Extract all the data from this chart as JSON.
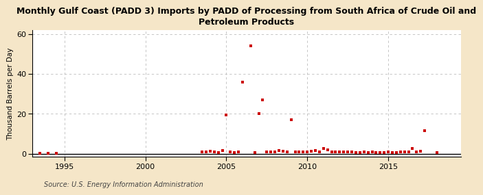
{
  "title": "Monthly Gulf Coast (PADD 3) Imports by PADD of Processing from South Africa of Crude Oil and\nPetroleum Products",
  "ylabel": "Thousand Barrels per Day",
  "source": "Source: U.S. Energy Information Administration",
  "background_color": "#f5e6c8",
  "plot_bg_color": "#ffffff",
  "marker_color": "#cc0000",
  "xlim": [
    1993.0,
    2019.5
  ],
  "ylim": [
    -1.5,
    62
  ],
  "yticks": [
    0,
    20,
    40,
    60
  ],
  "xticks": [
    1995,
    2000,
    2005,
    2010,
    2015
  ],
  "data_points": [
    [
      1993.5,
      0.3
    ],
    [
      1994.0,
      0.3
    ],
    [
      1994.5,
      0.3
    ],
    [
      2003.5,
      1.0
    ],
    [
      2003.75,
      0.8
    ],
    [
      2004.0,
      1.2
    ],
    [
      2004.25,
      0.8
    ],
    [
      2004.5,
      0.5
    ],
    [
      2004.75,
      1.5
    ],
    [
      2005.0,
      19.5
    ],
    [
      2005.25,
      0.8
    ],
    [
      2005.5,
      0.5
    ],
    [
      2005.75,
      1.0
    ],
    [
      2006.0,
      36.0
    ],
    [
      2006.5,
      54.0
    ],
    [
      2006.75,
      0.5
    ],
    [
      2007.0,
      20.0
    ],
    [
      2007.25,
      27.0
    ],
    [
      2007.5,
      0.8
    ],
    [
      2007.75,
      1.0
    ],
    [
      2008.0,
      0.8
    ],
    [
      2008.25,
      1.5
    ],
    [
      2008.5,
      1.2
    ],
    [
      2008.75,
      0.8
    ],
    [
      2009.0,
      17.0
    ],
    [
      2009.25,
      0.8
    ],
    [
      2009.5,
      0.8
    ],
    [
      2009.75,
      1.0
    ],
    [
      2010.0,
      0.8
    ],
    [
      2010.25,
      1.2
    ],
    [
      2010.5,
      1.5
    ],
    [
      2010.75,
      0.8
    ],
    [
      2011.0,
      2.5
    ],
    [
      2011.25,
      2.0
    ],
    [
      2011.5,
      0.8
    ],
    [
      2011.75,
      1.0
    ],
    [
      2012.0,
      0.8
    ],
    [
      2012.25,
      0.8
    ],
    [
      2012.5,
      0.8
    ],
    [
      2012.75,
      0.8
    ],
    [
      2013.0,
      0.5
    ],
    [
      2013.25,
      0.5
    ],
    [
      2013.5,
      0.8
    ],
    [
      2013.75,
      0.5
    ],
    [
      2014.0,
      0.8
    ],
    [
      2014.25,
      0.5
    ],
    [
      2014.5,
      0.5
    ],
    [
      2014.75,
      0.5
    ],
    [
      2015.0,
      0.8
    ],
    [
      2015.25,
      0.5
    ],
    [
      2015.5,
      0.5
    ],
    [
      2015.75,
      0.8
    ],
    [
      2016.0,
      0.8
    ],
    [
      2016.25,
      1.0
    ],
    [
      2016.5,
      2.8
    ],
    [
      2016.75,
      1.0
    ],
    [
      2017.0,
      1.2
    ],
    [
      2017.25,
      11.5
    ],
    [
      2018.0,
      0.5
    ]
  ]
}
